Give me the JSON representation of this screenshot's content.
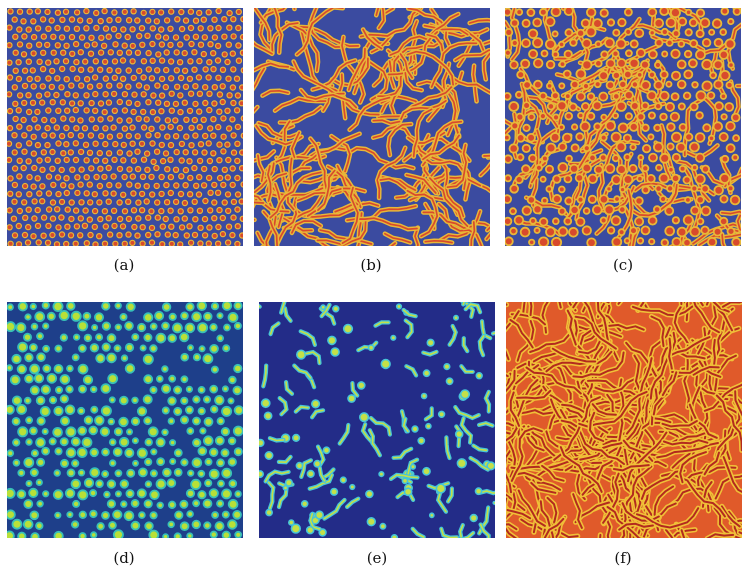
{
  "figure": {
    "panels": [
      {
        "label": "(a)",
        "pattern": "spots",
        "colors": {
          "background": "#3b4ba0",
          "stroke": "#e8b838",
          "core": "#d84a2c"
        }
      },
      {
        "label": "(b)",
        "pattern": "stripes",
        "colors": {
          "background": "#3b4ba0",
          "stroke": "#e8b838",
          "core": "#d84a2c"
        }
      },
      {
        "label": "(c)",
        "pattern": "mixed",
        "colors": {
          "background": "#3b4ba0",
          "stroke": "#e8b838",
          "core": "#d84a2c"
        }
      },
      {
        "label": "(d)",
        "pattern": "spots",
        "colors": {
          "background": "#1e3f8a",
          "stroke": "#38c0b8",
          "core": "#b8e038"
        }
      },
      {
        "label": "(e)",
        "pattern": "clusters",
        "colors": {
          "background": "#232c88",
          "stroke": "#46c4d8",
          "core": "#c4e048"
        }
      },
      {
        "label": "(f)",
        "pattern": "labyrinth",
        "colors": {
          "background": "#e05a2a",
          "stroke": "#f0c038",
          "core": "#b32a1e"
        }
      }
    ]
  }
}
